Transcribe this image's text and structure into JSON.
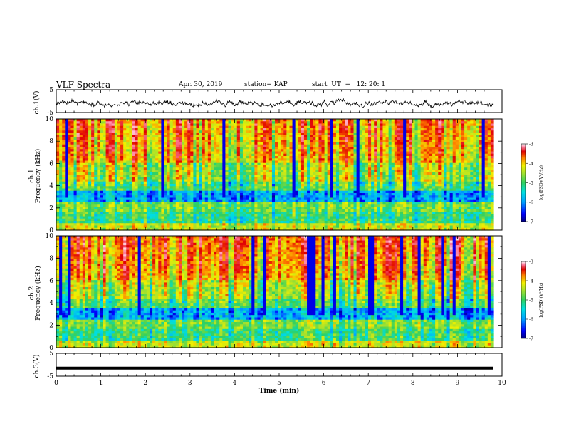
{
  "header": {
    "title": "VLF Spectra",
    "date": "Apr. 30, 2019",
    "station": "station= KAP",
    "start_ut": "start  UT  =   12: 20: 1"
  },
  "chart_data": [
    {
      "type": "line",
      "panel": "ch1-waveform",
      "ylabel": "ch.1(V)",
      "ylim": [
        -5,
        5
      ],
      "yticks": [
        "5",
        "-5"
      ],
      "xlim": [
        0,
        10
      ],
      "description_values": "noisy trace around -1 V, roughly between -4 and 2 V"
    },
    {
      "type": "heatmap",
      "panel": "ch1-spectrogram",
      "ylabel_lines": [
        "ch.1",
        "Frequency (kHz)"
      ],
      "ylim": [
        0,
        10
      ],
      "yticks": [
        "0",
        "2",
        "4",
        "6",
        "8",
        "10"
      ],
      "xlim": [
        0,
        10
      ],
      "colorbar": {
        "min": -7,
        "max": -3,
        "ticks": [
          "-3",
          "-4",
          "-5",
          "-6",
          "-7"
        ],
        "label": "log(PSD)(V²/Hz)"
      }
    },
    {
      "type": "heatmap",
      "panel": "ch2-spectrogram",
      "ylabel_lines": [
        "ch.2",
        "Frequency (kHz)"
      ],
      "ylim": [
        0,
        10
      ],
      "yticks": [
        "0",
        "2",
        "4",
        "6",
        "8",
        "10"
      ],
      "xlim": [
        0,
        10
      ],
      "colorbar": {
        "min": -7,
        "max": -3,
        "ticks": [
          "-3",
          "-4",
          "-5",
          "-6",
          "-7"
        ],
        "label": "log(PSD)(V²/Hz)"
      }
    },
    {
      "type": "line",
      "panel": "ch3-waveform",
      "ylabel": "ch.3(V)",
      "ylim": [
        -5,
        5
      ],
      "yticks": [
        "5",
        "-5"
      ],
      "xlim": [
        0,
        10
      ],
      "values_const": -1.5
    }
  ],
  "xaxis": {
    "label": "Time  (min)",
    "ticks": [
      "0",
      "1",
      "2",
      "3",
      "4",
      "5",
      "6",
      "7",
      "8",
      "9",
      "10"
    ]
  },
  "colors": {
    "trace": "#000000",
    "colormap": [
      "#000080",
      "#0000ff",
      "#00a0ff",
      "#00e0e0",
      "#30d060",
      "#a0e030",
      "#f0f000",
      "#ff8000",
      "#e00000",
      "#ff80a0",
      "#ffffff"
    ]
  }
}
